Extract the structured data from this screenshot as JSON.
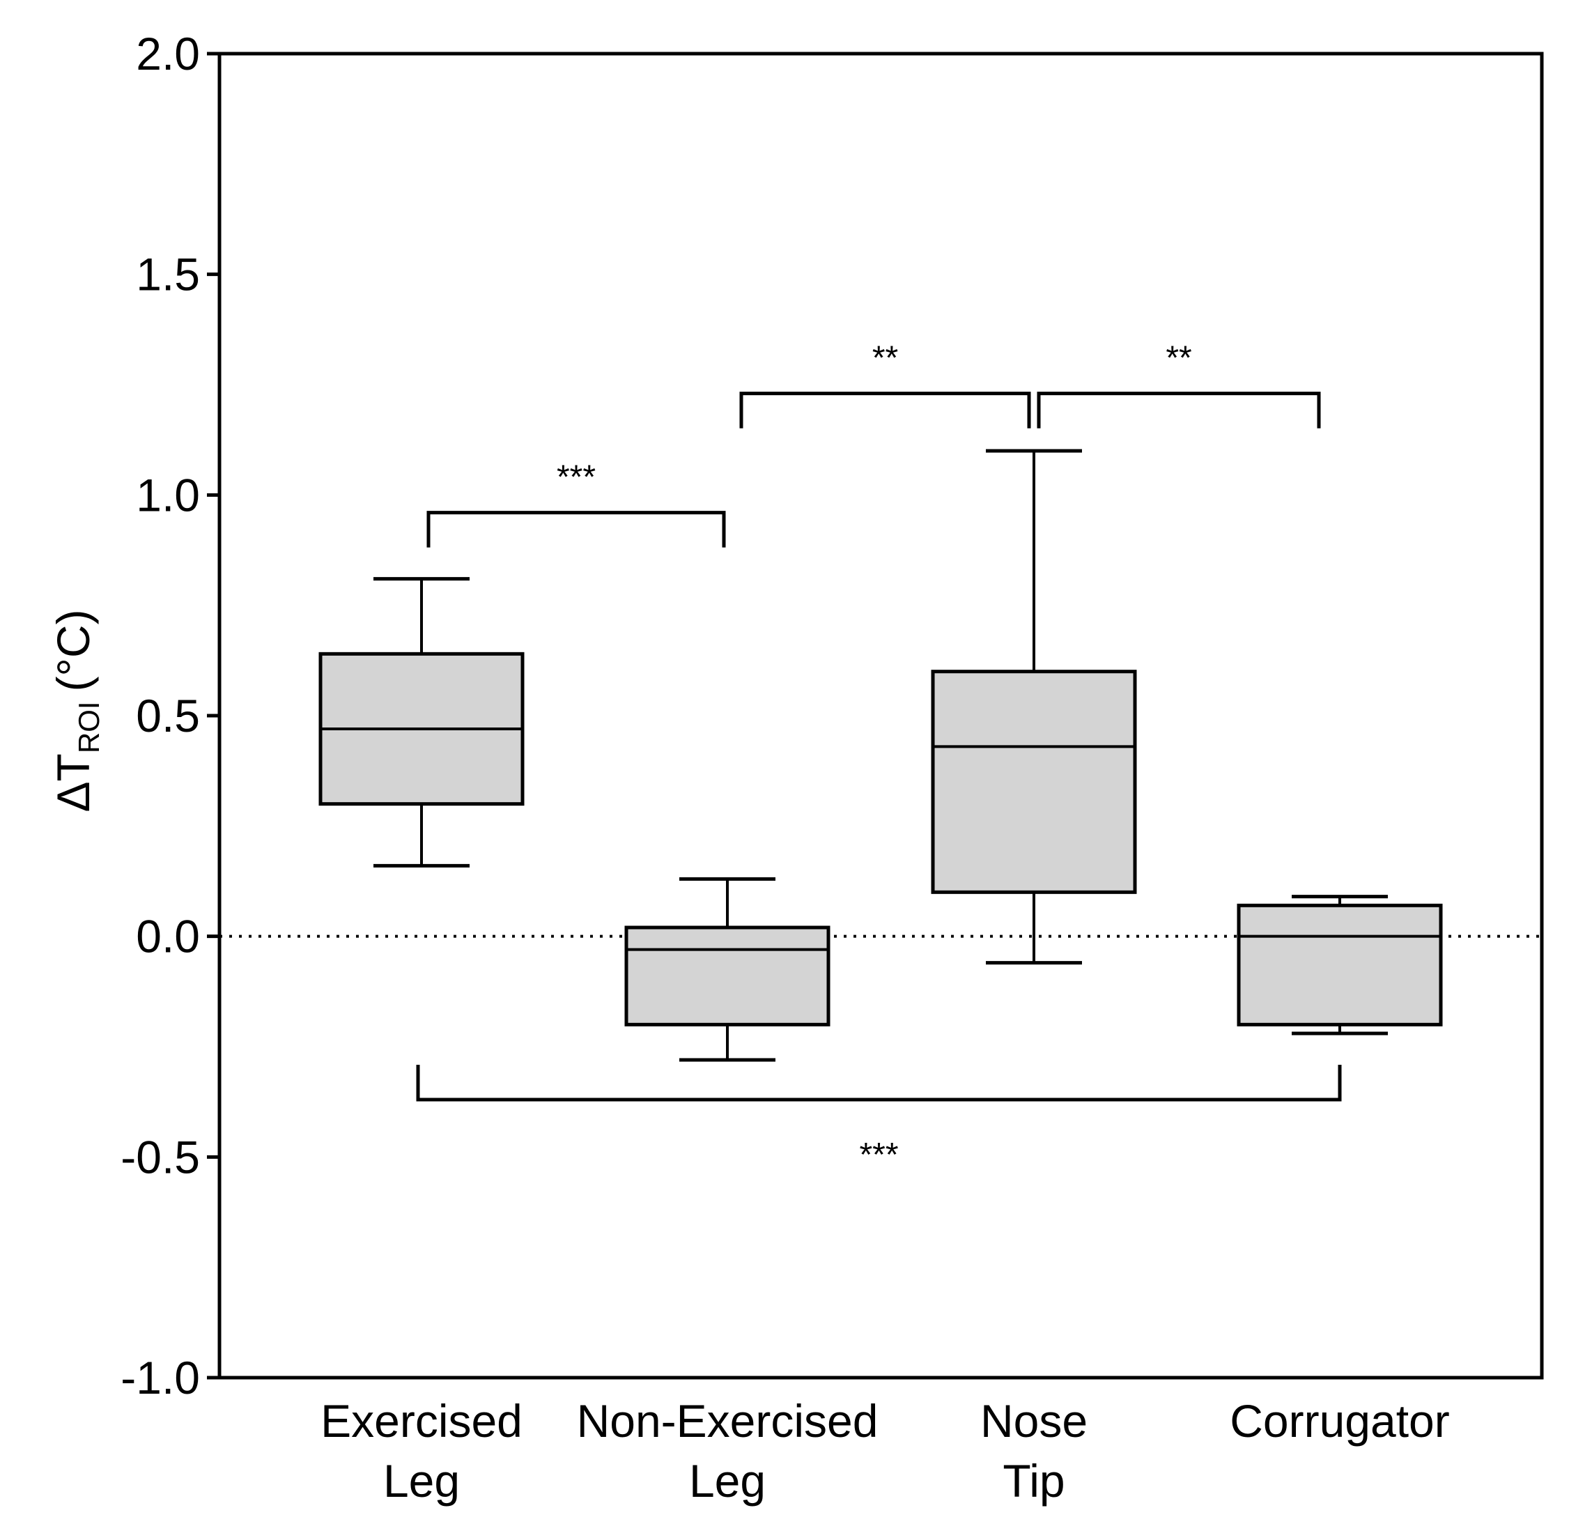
{
  "chart_data": {
    "type": "box",
    "title": "",
    "xlabel": "",
    "ylabel": {
      "prefix": "ΔT",
      "subscript": "ROI",
      "suffix": "(°C)"
    },
    "ylim": [
      -1.0,
      2.0
    ],
    "yticks": [
      "2.0",
      "1.5",
      "1.0",
      "0.5",
      "0.0",
      "-0.5",
      "-1.0"
    ],
    "grid": false,
    "reference_line": {
      "y": 0.0,
      "style": "dotted"
    },
    "categories": [
      {
        "line1": "Exercised",
        "line2": "Leg"
      },
      {
        "line1": "Non-Exercised",
        "line2": "Leg"
      },
      {
        "line1": "Nose",
        "line2": "Tip"
      },
      {
        "line1": "Corrugator",
        "line2": ""
      }
    ],
    "boxes": [
      {
        "whisker_low": 0.16,
        "q1": 0.3,
        "median": 0.47,
        "q3": 0.64,
        "whisker_high": 0.81
      },
      {
        "whisker_low": -0.28,
        "q1": -0.2,
        "median": -0.03,
        "q3": 0.02,
        "whisker_high": 0.13
      },
      {
        "whisker_low": -0.06,
        "q1": 0.1,
        "median": 0.43,
        "q3": 0.6,
        "whisker_high": 1.1
      },
      {
        "whisker_low": -0.22,
        "q1": -0.2,
        "median": 0.0,
        "q3": 0.07,
        "whisker_high": 0.09
      }
    ],
    "significance": [
      {
        "from": 0,
        "to": 1,
        "y": 0.96,
        "label": "***",
        "direction": "above"
      },
      {
        "from": 1,
        "to": 2,
        "y": 1.23,
        "label": "**",
        "direction": "above"
      },
      {
        "from": 2,
        "to": 3,
        "y": 1.23,
        "label": "**",
        "direction": "above"
      },
      {
        "from": 0,
        "to": 3,
        "y": -0.37,
        "label": "***",
        "direction": "below"
      }
    ],
    "colors": {
      "box_fill": "#d4d4d4",
      "line": "#000000"
    }
  }
}
